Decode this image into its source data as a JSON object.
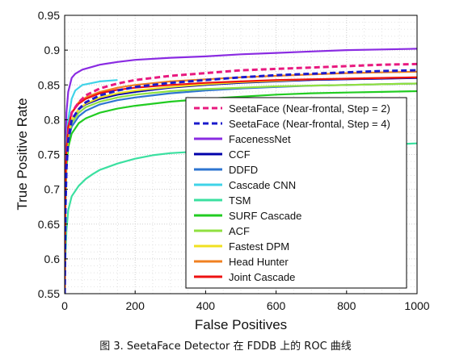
{
  "caption": "图 3. SeetaFace Detector 在 FDDB 上的 ROC 曲线",
  "chart_data": {
    "type": "line",
    "xlabel": "False Positives",
    "ylabel": "True Positive Rate",
    "xlim": [
      0,
      1000
    ],
    "ylim": [
      0.55,
      0.95
    ],
    "xticks": [
      0,
      200,
      400,
      600,
      800,
      1000
    ],
    "xtick_labels": [
      "0",
      "200",
      "400",
      "600",
      "800",
      "1000"
    ],
    "yticks": [
      0.55,
      0.6,
      0.65,
      0.7,
      0.75,
      0.8,
      0.85,
      0.9,
      0.95
    ],
    "ytick_labels": [
      "0.55",
      "0.6",
      "0.65",
      "0.7",
      "0.75",
      "0.8",
      "0.85",
      "0.9",
      "0.95"
    ],
    "grid": true,
    "legend_position": "lower-right",
    "series": [
      {
        "name": "SeetaFace (Near-frontal, Step = 2)",
        "color": "#e8197f",
        "dash": true,
        "x": [
          0,
          2,
          5,
          10,
          20,
          40,
          60,
          100,
          150,
          200,
          300,
          400,
          500,
          600,
          700,
          800,
          900,
          1000
        ],
        "y": [
          0.55,
          0.68,
          0.74,
          0.78,
          0.81,
          0.825,
          0.835,
          0.845,
          0.852,
          0.857,
          0.863,
          0.867,
          0.871,
          0.873,
          0.875,
          0.877,
          0.879,
          0.88
        ]
      },
      {
        "name": "SeetaFace (Near-frontal, Step = 4)",
        "color": "#1a1acc",
        "dash": true,
        "x": [
          0,
          2,
          5,
          10,
          20,
          40,
          60,
          100,
          150,
          200,
          300,
          400,
          500,
          600,
          700,
          800,
          900,
          1000
        ],
        "y": [
          0.55,
          0.67,
          0.73,
          0.77,
          0.8,
          0.815,
          0.825,
          0.835,
          0.842,
          0.847,
          0.853,
          0.857,
          0.861,
          0.864,
          0.866,
          0.868,
          0.87,
          0.871
        ]
      },
      {
        "name": "FacenessNet",
        "color": "#8a2be2",
        "dash": false,
        "x": [
          0,
          2,
          5,
          10,
          20,
          30,
          50,
          100,
          150,
          200,
          300,
          400,
          500,
          600,
          700,
          800,
          900,
          1000
        ],
        "y": [
          0.55,
          0.75,
          0.81,
          0.84,
          0.86,
          0.866,
          0.872,
          0.879,
          0.883,
          0.886,
          0.889,
          0.891,
          0.894,
          0.896,
          0.898,
          0.9,
          0.901,
          0.902
        ]
      },
      {
        "name": "CCF",
        "color": "#0000aa",
        "dash": false,
        "x": [
          0,
          2,
          5,
          10,
          20,
          40,
          60,
          100,
          150,
          200,
          300,
          400,
          500,
          600,
          700,
          800,
          900,
          1000
        ],
        "y": [
          0.55,
          0.69,
          0.75,
          0.78,
          0.8,
          0.815,
          0.822,
          0.83,
          0.836,
          0.84,
          0.846,
          0.85,
          0.853,
          0.855,
          0.857,
          0.858,
          0.859,
          0.86
        ]
      },
      {
        "name": "DDFD",
        "color": "#2e75d0",
        "dash": false,
        "x": [
          0,
          2,
          5,
          10,
          20,
          40,
          60,
          100,
          150,
          200,
          300,
          400,
          500,
          600,
          700,
          800,
          900,
          1000
        ],
        "y": [
          0.55,
          0.68,
          0.74,
          0.77,
          0.79,
          0.805,
          0.813,
          0.822,
          0.828,
          0.832,
          0.838,
          0.842,
          0.845,
          0.847,
          0.849,
          0.85,
          0.851,
          0.852
        ]
      },
      {
        "name": "Cascade CNN",
        "color": "#3fd3e8",
        "dash": false,
        "x": [
          0,
          2,
          5,
          10,
          20,
          30,
          50,
          80,
          100,
          150
        ],
        "y": [
          0.55,
          0.71,
          0.77,
          0.8,
          0.83,
          0.842,
          0.85,
          0.853,
          0.855,
          0.857
        ]
      },
      {
        "name": "TSM",
        "color": "#3be0a0",
        "dash": false,
        "x": [
          0,
          2,
          5,
          10,
          20,
          40,
          60,
          80,
          100,
          150,
          200,
          250,
          300,
          400,
          500,
          600,
          700,
          800,
          900,
          1000
        ],
        "y": [
          0.55,
          0.6,
          0.64,
          0.67,
          0.69,
          0.705,
          0.715,
          0.722,
          0.728,
          0.737,
          0.744,
          0.749,
          0.752,
          0.755,
          0.757,
          0.759,
          0.761,
          0.763,
          0.764,
          0.766
        ]
      },
      {
        "name": "SURF Cascade",
        "color": "#22cc22",
        "dash": false,
        "x": [
          0,
          2,
          5,
          10,
          20,
          40,
          60,
          100,
          150,
          200,
          300,
          400,
          500,
          600,
          700,
          800,
          900,
          1000
        ],
        "y": [
          0.55,
          0.67,
          0.73,
          0.76,
          0.78,
          0.795,
          0.802,
          0.81,
          0.816,
          0.82,
          0.826,
          0.83,
          0.833,
          0.836,
          0.838,
          0.839,
          0.84,
          0.841
        ]
      },
      {
        "name": "ACF",
        "color": "#90e040",
        "dash": false,
        "x": [
          0,
          2,
          5,
          10,
          20,
          40,
          60,
          100,
          150,
          200,
          300,
          400,
          500,
          600,
          700,
          800,
          900,
          1000
        ],
        "y": [
          0.55,
          0.68,
          0.74,
          0.775,
          0.795,
          0.81,
          0.818,
          0.826,
          0.832,
          0.836,
          0.841,
          0.844,
          0.846,
          0.848,
          0.849,
          0.85,
          0.851,
          0.852
        ]
      },
      {
        "name": "Fastest DPM",
        "color": "#f0e020",
        "dash": false,
        "x": [
          0,
          2,
          5,
          10,
          20,
          40,
          60,
          100,
          150,
          200,
          300,
          400,
          500,
          600,
          700,
          800,
          900,
          1000
        ],
        "y": [
          0.55,
          0.69,
          0.75,
          0.78,
          0.8,
          0.815,
          0.823,
          0.832,
          0.838,
          0.842,
          0.847,
          0.851,
          0.854,
          0.856,
          0.858,
          0.859,
          0.86,
          0.861
        ]
      },
      {
        "name": "Head Hunter",
        "color": "#f08020",
        "dash": false,
        "x": [
          0,
          2,
          5,
          10,
          20,
          40,
          60,
          100,
          150,
          200,
          300,
          400,
          500,
          600,
          700,
          800,
          900,
          1000
        ],
        "y": [
          0.55,
          0.7,
          0.76,
          0.79,
          0.81,
          0.825,
          0.832,
          0.84,
          0.846,
          0.85,
          0.855,
          0.858,
          0.861,
          0.863,
          0.865,
          0.867,
          0.868,
          0.869
        ]
      },
      {
        "name": "Joint Cascade",
        "color": "#ee1111",
        "dash": false,
        "x": [
          0,
          2,
          5,
          10,
          20,
          40,
          60,
          100,
          150,
          200,
          300,
          400,
          500,
          600,
          700,
          800,
          900,
          1000
        ],
        "y": [
          0.55,
          0.7,
          0.76,
          0.79,
          0.81,
          0.823,
          0.83,
          0.838,
          0.843,
          0.846,
          0.85,
          0.853,
          0.855,
          0.857,
          0.858,
          0.859,
          0.86,
          0.861
        ]
      }
    ]
  }
}
